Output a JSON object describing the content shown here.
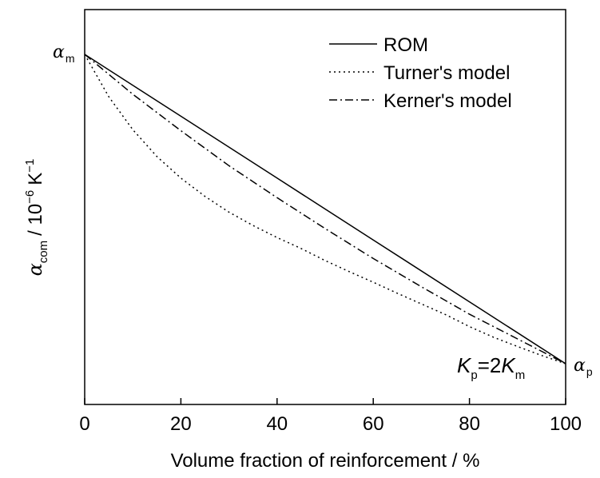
{
  "chart_data": {
    "type": "line",
    "xlabel": "Volume fraction of reinforcement / %",
    "ylabel": {
      "symbol": "α",
      "subscript": "com",
      "unit_prefix": "/  10",
      "unit_exp": "−6",
      "unit": "K",
      "unit_unit_exp": "−1"
    },
    "xlim": [
      0,
      100
    ],
    "ylim": [
      0,
      1
    ],
    "xticks": [
      "0",
      "20",
      "40",
      "60",
      "80",
      "100"
    ],
    "xtick_values": [
      0,
      20,
      40,
      60,
      80,
      100
    ],
    "grid": false,
    "legend_position": "top-right",
    "annotations": {
      "alpha_m": {
        "symbol": "α",
        "subscript": "m"
      },
      "alpha_p": {
        "symbol": "α",
        "subscript": "p"
      },
      "condition": {
        "k1": "K",
        "k1_sub": "p",
        "mid": "=2",
        "k2": "K",
        "k2_sub": "m"
      }
    },
    "series": [
      {
        "name": "ROM",
        "style": "solid",
        "x": [
          0,
          20,
          40,
          60,
          80,
          100
        ],
        "y": [
          0.9,
          0.72,
          0.54,
          0.36,
          0.18,
          0.0
        ]
      },
      {
        "name": "Turner's model",
        "style": "dotted",
        "x": [
          0,
          5,
          10,
          15,
          20,
          25,
          30,
          35,
          40,
          45,
          50,
          55,
          60,
          65,
          70,
          75,
          80,
          85,
          90,
          95,
          100
        ],
        "y": [
          0.9,
          0.777,
          0.681,
          0.603,
          0.54,
          0.487,
          0.441,
          0.402,
          0.367,
          0.335,
          0.3,
          0.268,
          0.237,
          0.205,
          0.174,
          0.143,
          0.108,
          0.077,
          0.05,
          0.024,
          0.0
        ]
      },
      {
        "name": "Kerner's model",
        "style": "dashdot",
        "x": [
          0,
          10,
          20,
          30,
          40,
          50,
          60,
          70,
          80,
          90,
          100
        ],
        "y": [
          0.9,
          0.784,
          0.678,
          0.576,
          0.483,
          0.393,
          0.306,
          0.224,
          0.144,
          0.072,
          0.0
        ]
      }
    ]
  }
}
